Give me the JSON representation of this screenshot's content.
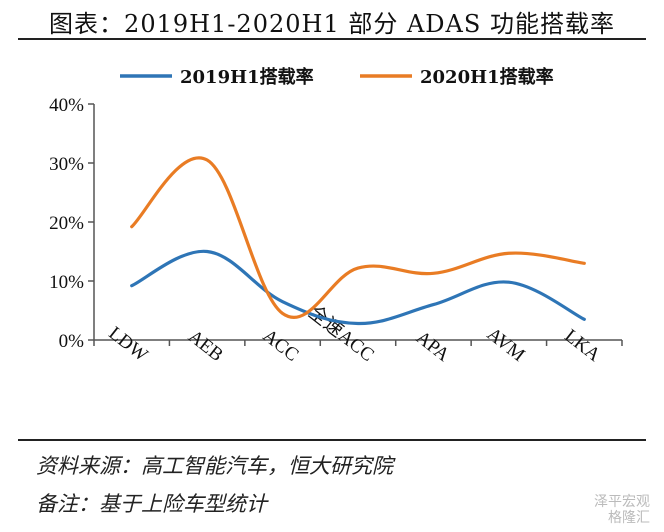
{
  "header": {
    "title": "图表：2019H1-2020H1 部分 ADAS 功能搭载率"
  },
  "chart_data": {
    "type": "line",
    "title": "图表：2019H1-2020H1 部分 ADAS 功能搭载率",
    "categories": [
      "LDW",
      "AEB",
      "ACC",
      "全速ACC",
      "APA",
      "AVM",
      "LKA"
    ],
    "ylim": [
      0,
      40
    ],
    "yticks": [
      0,
      10,
      20,
      30,
      40
    ],
    "ytick_labels": [
      "0%",
      "10%",
      "20%",
      "30%",
      "40%"
    ],
    "xlabel": "",
    "ylabel": "",
    "legend_position": "top",
    "series": [
      {
        "name": "2019H1搭载率",
        "color": "#2E75B6",
        "values": [
          9.2,
          15.0,
          6.5,
          2.8,
          6.0,
          9.8,
          3.5
        ]
      },
      {
        "name": "2020H1搭载率",
        "color": "#E97C24",
        "values": [
          19.2,
          30.5,
          4.5,
          12.2,
          11.3,
          14.7,
          13.0
        ]
      }
    ]
  },
  "footer": {
    "source": "资料来源：高工智能汽车，恒大研究院",
    "note": "备注：基于上险车型统计"
  },
  "watermark": {
    "line1": "泽平宏观",
    "line2": "格隆汇"
  }
}
